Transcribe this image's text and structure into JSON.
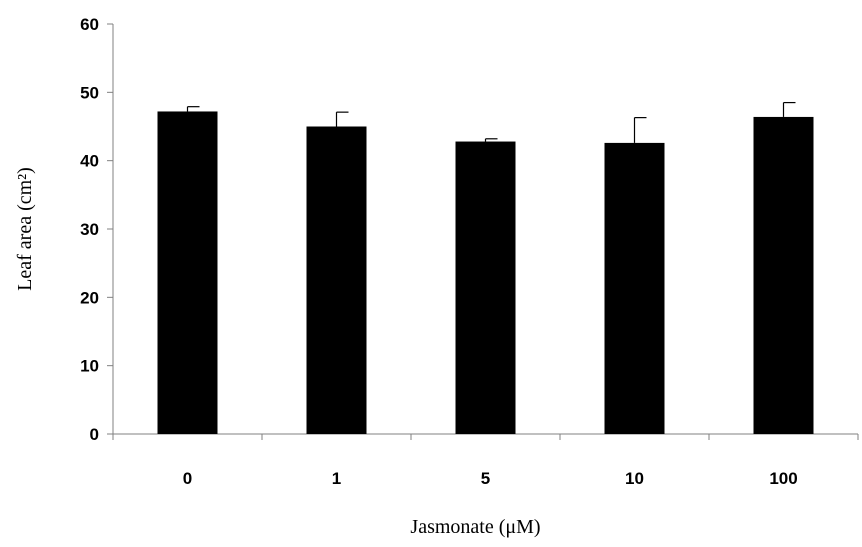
{
  "chart_data": {
    "type": "bar",
    "title": "",
    "xlabel": "Jasmonate (μM)",
    "ylabel": "Leaf area (cm²)",
    "categories": [
      "0",
      "1",
      "5",
      "10",
      "100"
    ],
    "values": [
      47.2,
      45.0,
      42.8,
      42.6,
      46.4
    ],
    "errors": [
      0.7,
      2.1,
      0.4,
      3.7,
      2.1
    ],
    "ylim": [
      0,
      60
    ],
    "yticks": [
      0,
      10,
      20,
      30,
      40,
      50,
      60
    ],
    "grid": false,
    "legend": "none",
    "bar_color": "#000000"
  }
}
